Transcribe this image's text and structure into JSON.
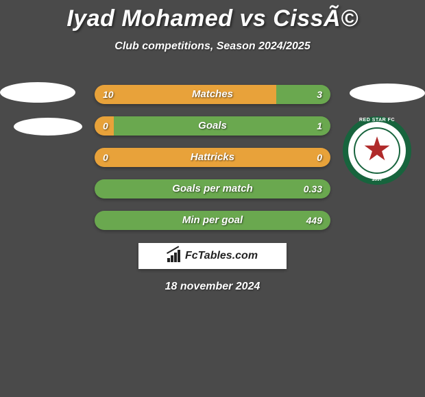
{
  "title": "Iyad Mohamed vs CissÃ©",
  "subtitle": "Club competitions, Season 2024/2025",
  "date": "18 november 2024",
  "brand": "FcTables.com",
  "club_logo": {
    "text": "RED STAR FC",
    "year": "1897"
  },
  "colors": {
    "orange": "#e8a23a",
    "green": "#6aa84f",
    "background": "#4a4a4a"
  },
  "bars": [
    {
      "label": "Matches",
      "left_val": "10",
      "right_val": "3",
      "left_pct": 77,
      "left_color": "#e8a23a",
      "right_color": "#6aa84f"
    },
    {
      "label": "Goals",
      "left_val": "0",
      "right_val": "1",
      "left_pct": 8,
      "left_color": "#e8a23a",
      "right_color": "#6aa84f"
    },
    {
      "label": "Hattricks",
      "left_val": "0",
      "right_val": "0",
      "left_pct": 100,
      "left_color": "#e8a23a",
      "right_color": "#6aa84f"
    },
    {
      "label": "Goals per match",
      "left_val": "",
      "right_val": "0.33",
      "left_pct": 0,
      "left_color": "#e8a23a",
      "right_color": "#6aa84f"
    },
    {
      "label": "Min per goal",
      "left_val": "",
      "right_val": "449",
      "left_pct": 0,
      "left_color": "#e8a23a",
      "right_color": "#6aa84f"
    }
  ]
}
